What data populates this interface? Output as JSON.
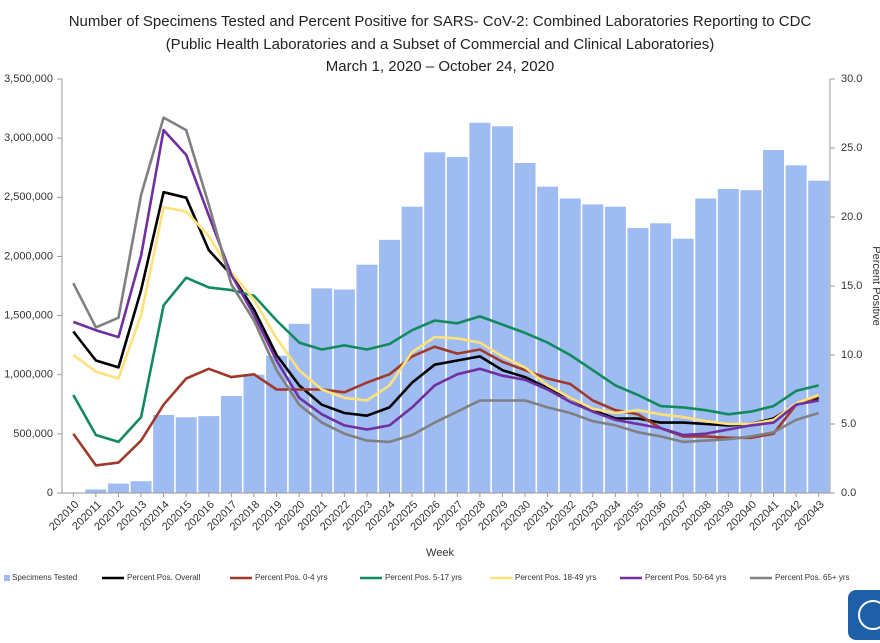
{
  "chart_data": {
    "type": "combo",
    "title": "Number of Specimens Tested and Percent Positive for SARS- CoV-2: Combined Laboratories Reporting to CDC",
    "subtitle": [
      "(Public Health Laboratories and a Subset of Commercial and Clinical Laboratories)",
      "March 1, 2020 – October 24, 2020"
    ],
    "x_label": "Week",
    "y2_label": "Percent Positive",
    "categories": [
      "202010",
      "202011",
      "202012",
      "202013",
      "202014",
      "202015",
      "202016",
      "202017",
      "202018",
      "202019",
      "202020",
      "202021",
      "202022",
      "202023",
      "202024",
      "202025",
      "202026",
      "202027",
      "202028",
      "202029",
      "202030",
      "202031",
      "202032",
      "202033",
      "202034",
      "202035",
      "202036",
      "202037",
      "202038",
      "202039",
      "202040",
      "202041",
      "202042",
      "202043"
    ],
    "ylim": [
      0,
      3500000
    ],
    "yticks": [
      0,
      {
        "value": 500000,
        "label": "500,000"
      },
      {
        "value": 1000000,
        "label": "1,000,000"
      },
      {
        "value": 1500000,
        "label": "1,500,000"
      },
      {
        "value": 2000000,
        "label": "2,000,000"
      },
      {
        "value": 2500000,
        "label": "2,500,000"
      },
      {
        "value": 3000000,
        "label": "3,000,000"
      },
      {
        "value": 3500000,
        "label": "3,500,000"
      }
    ],
    "y2lim": [
      0,
      30
    ],
    "y2ticks": [
      {
        "value": 0,
        "label": "0.0"
      },
      {
        "value": 5,
        "label": "5.0"
      },
      {
        "value": 10,
        "label": "10.0"
      },
      {
        "value": 15,
        "label": "15.0"
      },
      {
        "value": 20,
        "label": "20.0"
      },
      {
        "value": 25,
        "label": "25.0"
      },
      {
        "value": 30,
        "label": "30.0"
      }
    ],
    "series": [
      {
        "name": "Specimens Tested",
        "type": "bar",
        "axis": "y",
        "color": "#9ebcf2",
        "values": [
          5000,
          30000,
          80000,
          100000,
          660000,
          640000,
          650000,
          820000,
          1000000,
          1160000,
          1430000,
          1730000,
          1720000,
          1930000,
          2140000,
          2420000,
          2880000,
          2840000,
          3130000,
          3100000,
          2790000,
          2590000,
          2490000,
          2440000,
          2420000,
          2240000,
          2280000,
          2150000,
          2490000,
          2570000,
          2560000,
          2900000,
          2770000,
          2640000
        ]
      },
      {
        "name": "Percent Pos. Overall",
        "type": "line",
        "axis": "y2",
        "color": "#000000",
        "values": [
          11.7,
          9.6,
          9.1,
          14.7,
          21.8,
          21.4,
          17.6,
          15.8,
          13.3,
          10.0,
          7.8,
          6.4,
          5.8,
          5.6,
          6.2,
          8.0,
          9.3,
          9.6,
          9.9,
          8.9,
          8.4,
          7.6,
          6.9,
          6.0,
          5.4,
          5.4,
          5.1,
          5.1,
          5.0,
          4.9,
          5.0,
          5.4,
          6.4,
          6.9
        ]
      },
      {
        "name": "Percent Pos. 0-4 yrs",
        "type": "line",
        "axis": "y2",
        "color": "#a0392b",
        "values": [
          4.3,
          2.0,
          2.2,
          3.8,
          6.4,
          8.3,
          9.0,
          8.4,
          8.6,
          7.5,
          7.5,
          7.5,
          7.3,
          8.0,
          8.6,
          9.9,
          10.6,
          10.1,
          10.4,
          9.5,
          8.9,
          8.3,
          7.9,
          6.7,
          6.0,
          5.7,
          4.7,
          4.1,
          4.1,
          4.0,
          4.0,
          4.3,
          6.4,
          7.0
        ]
      },
      {
        "name": "Percent Pos. 5-17 yrs",
        "type": "line",
        "axis": "y2",
        "color": "#138a5e",
        "values": [
          7.1,
          4.2,
          3.7,
          5.5,
          13.6,
          15.6,
          14.9,
          14.7,
          14.3,
          12.5,
          10.9,
          10.4,
          10.7,
          10.4,
          10.8,
          11.8,
          12.5,
          12.3,
          12.8,
          12.2,
          11.6,
          10.9,
          10.0,
          8.9,
          7.8,
          7.1,
          6.3,
          6.2,
          6.0,
          5.7,
          5.9,
          6.3,
          7.4,
          7.8
        ]
      },
      {
        "name": "Percent Pos. 18-49 yrs",
        "type": "line",
        "axis": "y2",
        "color": "#ffe17a",
        "values": [
          10.0,
          8.8,
          8.3,
          12.9,
          20.7,
          20.4,
          18.6,
          16.0,
          14.0,
          11.2,
          8.9,
          7.5,
          6.9,
          6.7,
          7.8,
          10.2,
          11.3,
          11.2,
          10.9,
          9.9,
          9.1,
          7.8,
          6.9,
          6.1,
          5.8,
          6.0,
          5.7,
          5.5,
          5.2,
          5.0,
          5.0,
          5.3,
          6.5,
          7.1
        ]
      },
      {
        "name": "Percent Pos. 50-64 yrs",
        "type": "line",
        "axis": "y2",
        "color": "#7030a0",
        "values": [
          12.4,
          11.8,
          11.3,
          17.2,
          26.3,
          24.5,
          20.1,
          15.8,
          12.9,
          9.6,
          6.9,
          5.7,
          4.9,
          4.6,
          4.9,
          6.2,
          7.8,
          8.6,
          9.0,
          8.5,
          8.2,
          7.5,
          6.6,
          5.9,
          5.3,
          5.0,
          4.7,
          4.2,
          4.3,
          4.6,
          4.9,
          5.1,
          6.4,
          6.7
        ]
      },
      {
        "name": "Percent Pos. 65+ yrs",
        "type": "line",
        "axis": "y2",
        "color": "#808080",
        "values": [
          15.2,
          12.0,
          12.7,
          21.6,
          27.2,
          26.3,
          20.9,
          15.1,
          12.5,
          8.9,
          6.4,
          5.1,
          4.3,
          3.8,
          3.7,
          4.2,
          5.1,
          5.9,
          6.7,
          6.7,
          6.7,
          6.2,
          5.8,
          5.2,
          4.9,
          4.4,
          4.1,
          3.7,
          3.8,
          3.9,
          4.1,
          4.4,
          5.3,
          5.8
        ]
      }
    ]
  }
}
